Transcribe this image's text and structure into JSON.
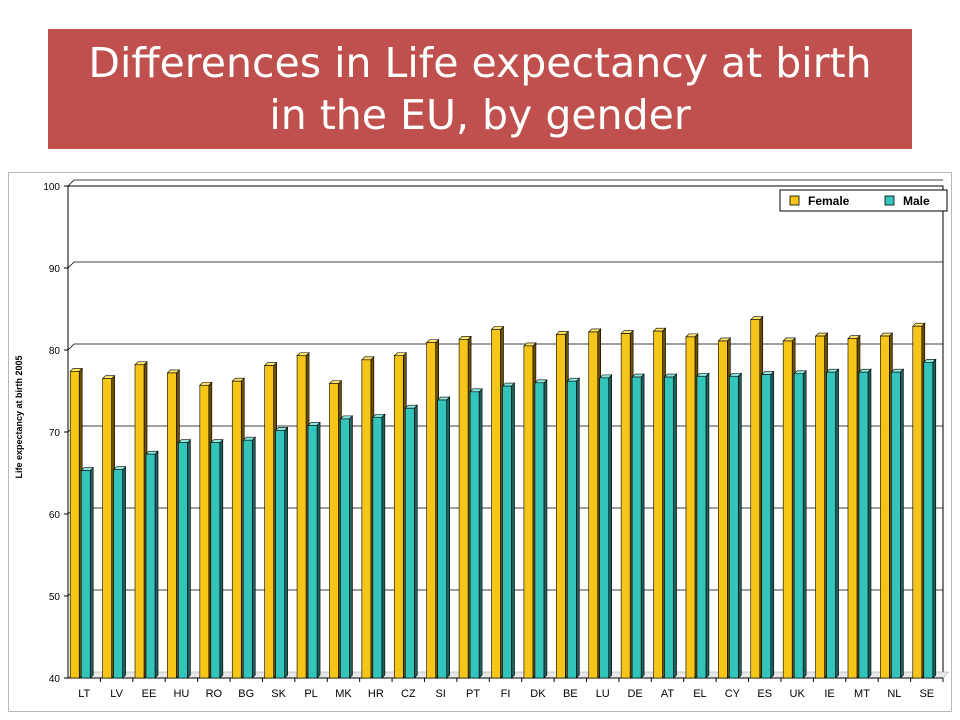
{
  "slide": {
    "title_line1": "Differences in Life expectancy at birth",
    "title_line2": "in the EU, by gender"
  },
  "colors": {
    "title_bg": "#c0504d",
    "female": "#f5c518",
    "female_top": "#fde26a",
    "female_side": "#6b4f00",
    "male": "#33c4bb",
    "male_top": "#8ee7e0",
    "male_side": "#1d5f5a"
  },
  "chart_data": {
    "type": "bar",
    "ylabel": "Life expectancy at birth 2005",
    "xlabel": "",
    "ylim": [
      40,
      100
    ],
    "yticks": [
      40,
      50,
      60,
      70,
      80,
      90,
      100
    ],
    "grid": true,
    "legend_position": "top-right",
    "categories": [
      "LT",
      "LV",
      "EE",
      "HU",
      "RO",
      "BG",
      "SK",
      "PL",
      "MK",
      "HR",
      "CZ",
      "SI",
      "PT",
      "FI",
      "DK",
      "BE",
      "LU",
      "DE",
      "AT",
      "EL",
      "CY",
      "ES",
      "UK",
      "IE",
      "MT",
      "NL",
      "SE"
    ],
    "series": [
      {
        "name": "Female",
        "values": [
          77.4,
          76.5,
          78.2,
          77.2,
          75.7,
          76.2,
          78.1,
          79.3,
          75.9,
          78.8,
          79.3,
          80.9,
          81.3,
          82.5,
          80.5,
          81.9,
          82.2,
          82.0,
          82.3,
          81.6,
          81.1,
          83.7,
          81.1,
          81.7,
          81.4,
          81.7,
          82.9
        ]
      },
      {
        "name": "Male",
        "values": [
          65.3,
          65.4,
          67.3,
          68.7,
          68.7,
          69.0,
          70.2,
          70.8,
          71.6,
          71.8,
          72.9,
          73.9,
          74.9,
          75.6,
          76.0,
          76.2,
          76.6,
          76.7,
          76.7,
          76.8,
          76.8,
          77.0,
          77.1,
          77.3,
          77.3,
          77.3,
          78.5
        ]
      }
    ]
  }
}
